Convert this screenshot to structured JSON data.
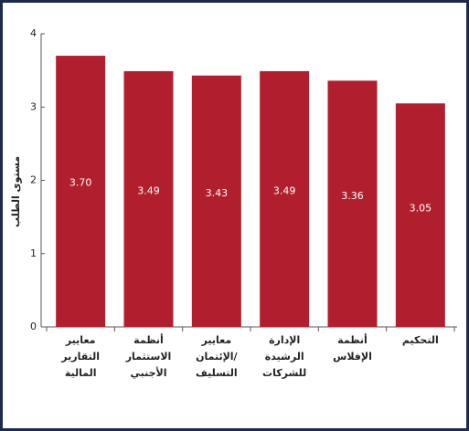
{
  "chart_data": {
    "type": "bar",
    "y_label": "مستوى الطلب",
    "categories": [
      [
        "معايير",
        "التقارير",
        "المالية"
      ],
      [
        "أنظمة",
        "الاستثمار",
        "الأجنبي"
      ],
      [
        "معايير",
        "الإئتمان/",
        "التسليف"
      ],
      [
        "الإدارة",
        "الرشيدة",
        "للشركات"
      ],
      [
        "أنظمة",
        "الإفلاس"
      ],
      [
        "التحكيم"
      ]
    ],
    "values": [
      3.7,
      3.49,
      3.43,
      3.49,
      3.36,
      3.05
    ],
    "value_labels": [
      "3.70",
      "3.49",
      "3.43",
      "3.49",
      "3.36",
      "3.05"
    ],
    "color": "#b11f2e",
    "ylim": [
      0,
      4
    ],
    "yticks": [
      0,
      1,
      2,
      3,
      4
    ],
    "grid": false
  }
}
